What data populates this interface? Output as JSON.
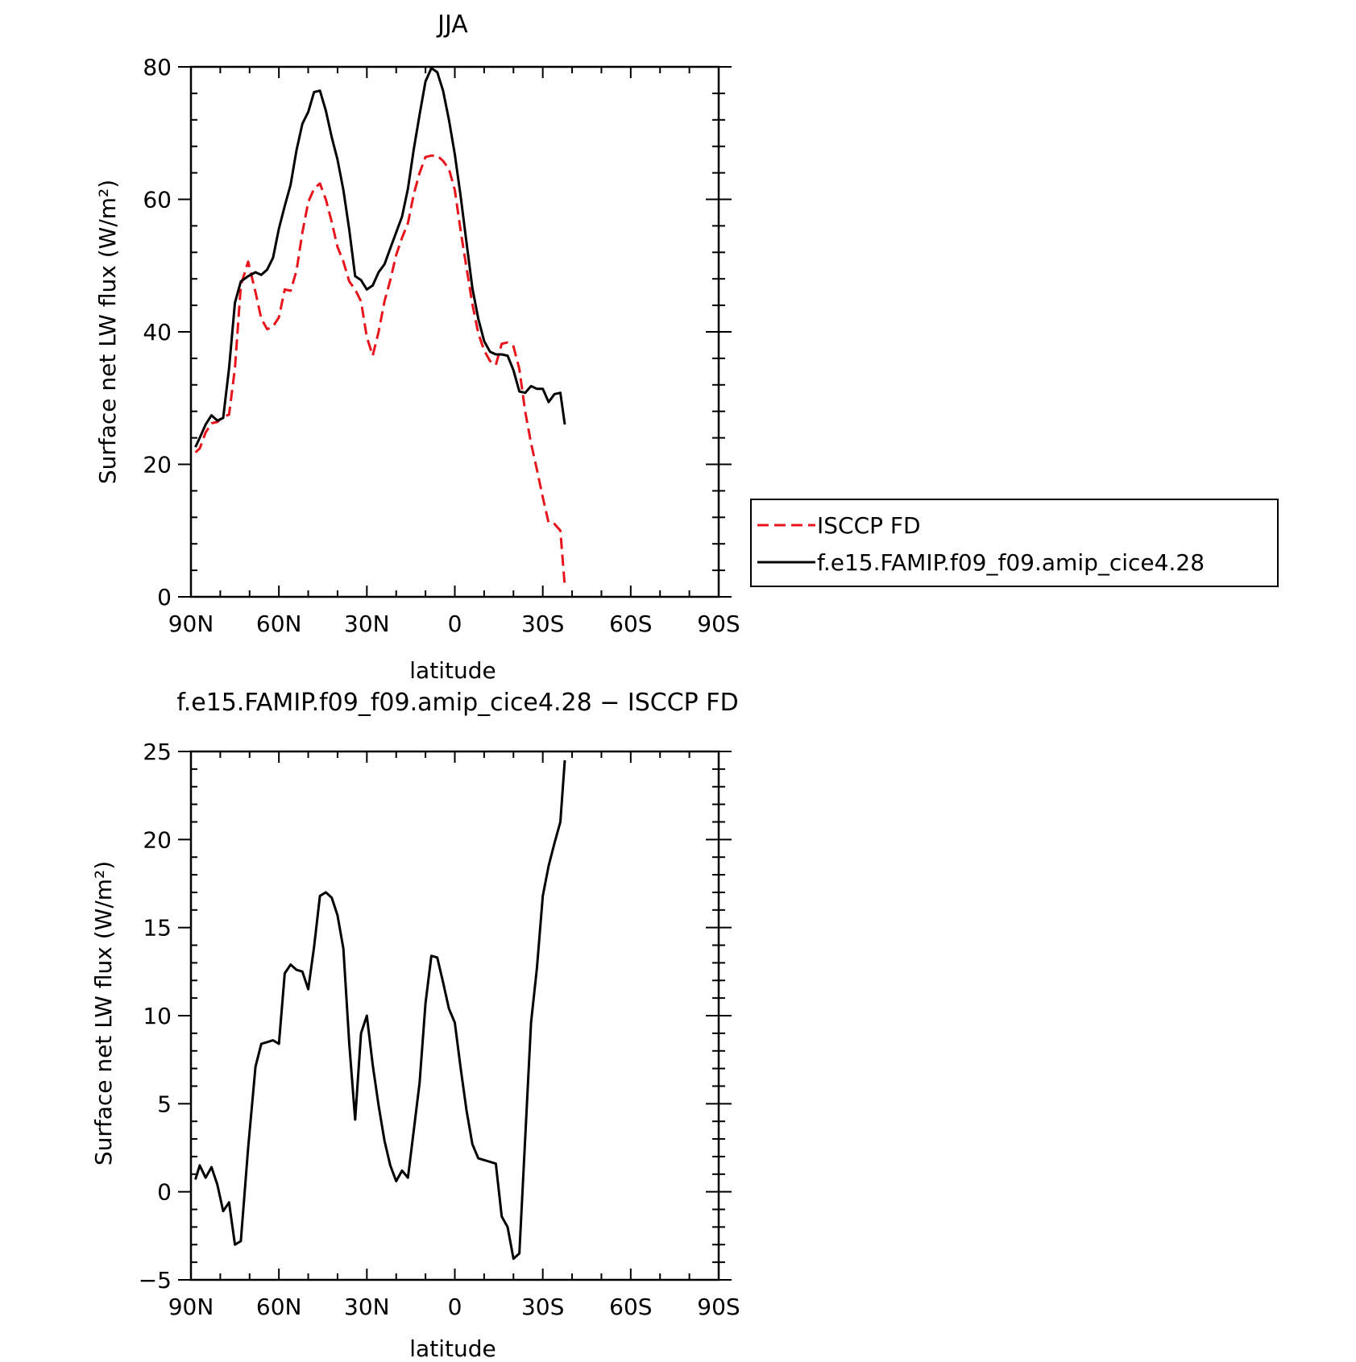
{
  "figure": {
    "colors": {
      "model": "#000000",
      "obs": "#e8141b",
      "axes": "#000000"
    }
  },
  "chart_data": [
    {
      "type": "line",
      "title": "JJA",
      "xlabel": "latitude",
      "ylabel": "Surface net LW flux (W/m²)",
      "xlim": [
        90,
        -90
      ],
      "ylim": [
        0,
        80
      ],
      "xticks": [
        90,
        60,
        30,
        0,
        -30,
        -60,
        -90
      ],
      "xtick_labels": [
        "90N",
        "60N",
        "30N",
        "0",
        "30S",
        "60S",
        "90S"
      ],
      "yticks": [
        0,
        20,
        40,
        60,
        80
      ],
      "ytick_labels": [
        "0",
        "20",
        "40",
        "60",
        "80"
      ],
      "grid": false,
      "legend": {
        "placement": "right-outside",
        "entries": [
          "ISCCP FD",
          "f.e15.FAMIP.f09_f09.amip_cice4.28"
        ]
      },
      "series": [
        {
          "name": "ISCCP FD",
          "style": "dashed",
          "color": "#e8141b",
          "points": [
            [
              88.5,
              21.8
            ],
            [
              87,
              22.4
            ],
            [
              85,
              24.8
            ],
            [
              83,
              26.2
            ],
            [
              81,
              26.4
            ],
            [
              79,
              27.2
            ],
            [
              77,
              27.5
            ],
            [
              75,
              34.5
            ],
            [
              73,
              47.0
            ],
            [
              70.5,
              50.6
            ],
            [
              68,
              46.0
            ],
            [
              66,
              42.0
            ],
            [
              64,
              40.4
            ],
            [
              62,
              40.8
            ],
            [
              60,
              42.2
            ],
            [
              58,
              46.4
            ],
            [
              56,
              46.2
            ],
            [
              54,
              49.2
            ],
            [
              52,
              55.0
            ],
            [
              50,
              59.6
            ],
            [
              48,
              61.6
            ],
            [
              46,
              62.4
            ],
            [
              44,
              60.0
            ],
            [
              42,
              56.6
            ],
            [
              40,
              52.8
            ],
            [
              38,
              50.6
            ],
            [
              36,
              47.6
            ],
            [
              34,
              46.4
            ],
            [
              32,
              44.6
            ],
            [
              30,
              39.2
            ],
            [
              28,
              36.4
            ],
            [
              26,
              40.0
            ],
            [
              24,
              44.6
            ],
            [
              22,
              47.8
            ],
            [
              20,
              51.6
            ],
            [
              18,
              54.2
            ],
            [
              16,
              56.4
            ],
            [
              14,
              60.8
            ],
            [
              12,
              64.0
            ],
            [
              10,
              66.4
            ],
            [
              8,
              66.6
            ],
            [
              6,
              66.6
            ],
            [
              4,
              65.8
            ],
            [
              2,
              64.6
            ],
            [
              0,
              61.4
            ],
            [
              -2,
              55.2
            ],
            [
              -4,
              49.6
            ],
            [
              -6,
              44.2
            ],
            [
              -8,
              39.8
            ],
            [
              -10,
              37.2
            ],
            [
              -12,
              35.6
            ],
            [
              -14,
              35.0
            ],
            [
              -16,
              38.2
            ],
            [
              -18,
              38.4
            ],
            [
              -20,
              37.8
            ],
            [
              -22,
              34.4
            ],
            [
              -24,
              28.0
            ],
            [
              -26,
              23.2
            ],
            [
              -28,
              19.2
            ],
            [
              -30,
              15.0
            ],
            [
              -32,
              11.2
            ],
            [
              -34,
              11.0
            ],
            [
              -36,
              10.0
            ],
            [
              -37.5,
              1.6
            ]
          ]
        },
        {
          "name": "f.e15.FAMIP.f09_f09.amip_cice4.28",
          "style": "solid",
          "color": "#000000",
          "points": [
            [
              88.5,
              22.6
            ],
            [
              87,
              24.0
            ],
            [
              85,
              26.0
            ],
            [
              83,
              27.4
            ],
            [
              81,
              26.6
            ],
            [
              79,
              27.0
            ],
            [
              77,
              34.5
            ],
            [
              75,
              44.4
            ],
            [
              73,
              47.6
            ],
            [
              70.5,
              48.4
            ],
            [
              68,
              49.0
            ],
            [
              66,
              48.6
            ],
            [
              64,
              49.4
            ],
            [
              62,
              51.2
            ],
            [
              60,
              55.6
            ],
            [
              58,
              59.0
            ],
            [
              56,
              62.2
            ],
            [
              54,
              67.4
            ],
            [
              52,
              71.4
            ],
            [
              50,
              73.2
            ],
            [
              48,
              76.2
            ],
            [
              46,
              76.4
            ],
            [
              44,
              73.4
            ],
            [
              42,
              69.4
            ],
            [
              40,
              66.0
            ],
            [
              38,
              61.4
            ],
            [
              36,
              55.4
            ],
            [
              34,
              48.4
            ],
            [
              32,
              47.8
            ],
            [
              30,
              46.4
            ],
            [
              28,
              47.0
            ],
            [
              26,
              49.0
            ],
            [
              24,
              50.2
            ],
            [
              22,
              52.6
            ],
            [
              20,
              55.0
            ],
            [
              18,
              57.4
            ],
            [
              16,
              61.6
            ],
            [
              14,
              67.6
            ],
            [
              12,
              72.8
            ],
            [
              10,
              77.8
            ],
            [
              8,
              79.8
            ],
            [
              6,
              79.2
            ],
            [
              4,
              76.4
            ],
            [
              2,
              72.0
            ],
            [
              0,
              66.8
            ],
            [
              -2,
              60.4
            ],
            [
              -4,
              53.4
            ],
            [
              -6,
              46.6
            ],
            [
              -8,
              42.0
            ],
            [
              -10,
              38.6
            ],
            [
              -12,
              37.0
            ],
            [
              -14,
              36.6
            ],
            [
              -16,
              36.6
            ],
            [
              -18,
              36.4
            ],
            [
              -20,
              34.2
            ],
            [
              -22,
              31.0
            ],
            [
              -24,
              30.8
            ],
            [
              -26,
              31.8
            ],
            [
              -28,
              31.4
            ],
            [
              -30,
              31.4
            ],
            [
              -32,
              29.4
            ],
            [
              -34,
              30.6
            ],
            [
              -36,
              30.8
            ],
            [
              -37.5,
              26.0
            ]
          ]
        }
      ]
    },
    {
      "type": "line",
      "title": "f.e15.FAMIP.f09_f09.amip_cice4.28 − ISCCP FD",
      "xlabel": "latitude",
      "ylabel": "Surface net LW flux (W/m²)",
      "xlim": [
        90,
        -90
      ],
      "ylim": [
        -5,
        25
      ],
      "xticks": [
        90,
        60,
        30,
        0,
        -30,
        -60,
        -90
      ],
      "xtick_labels": [
        "90N",
        "60N",
        "30N",
        "0",
        "30S",
        "60S",
        "90S"
      ],
      "yticks": [
        -5,
        0,
        5,
        10,
        15,
        20,
        25
      ],
      "ytick_labels": [
        "−5",
        "0",
        "5",
        "10",
        "15",
        "20",
        "25"
      ],
      "grid": false,
      "series": [
        {
          "style": "solid",
          "color": "#000000",
          "points": [
            [
              88.5,
              0.7
            ],
            [
              87,
              1.5
            ],
            [
              85,
              0.8
            ],
            [
              83,
              1.4
            ],
            [
              81,
              0.4
            ],
            [
              79,
              -1.1
            ],
            [
              77,
              -0.6
            ],
            [
              75,
              -3.0
            ],
            [
              73,
              -2.8
            ],
            [
              70.5,
              2.5
            ],
            [
              68,
              7.1
            ],
            [
              66,
              8.4
            ],
            [
              64,
              8.5
            ],
            [
              62,
              8.6
            ],
            [
              60,
              8.4
            ],
            [
              58,
              12.4
            ],
            [
              56,
              12.9
            ],
            [
              54,
              12.6
            ],
            [
              52,
              12.5
            ],
            [
              50,
              11.5
            ],
            [
              48,
              13.9
            ],
            [
              46,
              16.8
            ],
            [
              44,
              17.0
            ],
            [
              42,
              16.7
            ],
            [
              40,
              15.7
            ],
            [
              38,
              13.8
            ],
            [
              36,
              8.4
            ],
            [
              34,
              4.1
            ],
            [
              32,
              9.0
            ],
            [
              30,
              10.0
            ],
            [
              28,
              7.2
            ],
            [
              26,
              4.9
            ],
            [
              24,
              2.9
            ],
            [
              22,
              1.5
            ],
            [
              20,
              0.6
            ],
            [
              18,
              1.2
            ],
            [
              16,
              0.8
            ],
            [
              14,
              3.5
            ],
            [
              12,
              6.2
            ],
            [
              10,
              10.7
            ],
            [
              8,
              13.4
            ],
            [
              6,
              13.3
            ],
            [
              4,
              11.9
            ],
            [
              2,
              10.4
            ],
            [
              0,
              9.6
            ],
            [
              -2,
              7.0
            ],
            [
              -4,
              4.6
            ],
            [
              -6,
              2.7
            ],
            [
              -8,
              1.9
            ],
            [
              -10,
              1.8
            ],
            [
              -12,
              1.7
            ],
            [
              -14,
              1.6
            ],
            [
              -16,
              -1.4
            ],
            [
              -18,
              -2.0
            ],
            [
              -20,
              -3.8
            ],
            [
              -22,
              -3.5
            ],
            [
              -24,
              3.0
            ],
            [
              -26,
              9.6
            ],
            [
              -28,
              12.7
            ],
            [
              -30,
              16.8
            ],
            [
              -32,
              18.5
            ],
            [
              -34,
              19.8
            ],
            [
              -36,
              21.0
            ],
            [
              -37.5,
              24.5
            ]
          ]
        }
      ]
    }
  ]
}
